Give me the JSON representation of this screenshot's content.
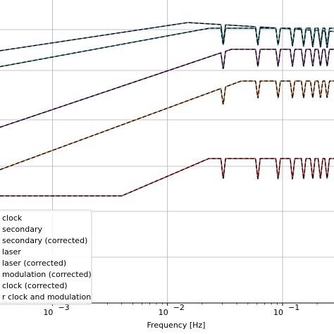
{
  "chart_data": {
    "type": "line",
    "title": "",
    "xlabel": "Frequency [Hz]",
    "ylabel": "",
    "xscale": "log",
    "xlim": [
      0.00035,
      0.28
    ],
    "grid": true,
    "x_ticks": [
      {
        "value": 0.001,
        "label": "10",
        "exp": "−3"
      },
      {
        "value": 0.01,
        "label": "10",
        "exp": "−2"
      },
      {
        "value": 0.1,
        "label": "10",
        "exp": "−1"
      }
    ],
    "legend": {
      "placement": "lower-left",
      "entries": [
        {
          "label": "clock",
          "color": "#4c72b0",
          "style": "solid"
        },
        {
          "label": "secondary",
          "color": "#1f8a8a",
          "style": "solid"
        },
        {
          "label": "secondary (corrected)",
          "color": "#8c8c8c",
          "style": "solid"
        },
        {
          "label": "laser",
          "color": "#7b2d8e",
          "style": "solid"
        },
        {
          "label": "laser (corrected)",
          "color": "#e377c2",
          "style": "solid"
        },
        {
          "label": "modulation (corrected)",
          "color": "#d2691e",
          "style": "solid"
        },
        {
          "label": "clock (corrected)",
          "color": "#d62728",
          "style": "solid"
        },
        {
          "label": "r clock and modulation",
          "color": "#000000",
          "style": "dashed"
        }
      ]
    },
    "series": [
      {
        "name": "clock",
        "color": "#4c72b0",
        "base": 0.3,
        "shape": "flat-rise",
        "dashed_overlay": true
      },
      {
        "name": "secondary",
        "color": "#1f8a8a",
        "base": 0.22,
        "shape": "rise",
        "dashed_overlay": true
      },
      {
        "name": "laser",
        "color": "#7b2d8e",
        "base": 0.42,
        "shape": "rise",
        "dashed_overlay": true
      },
      {
        "name": "modulation (corrected)",
        "color": "#d2691e",
        "base": 0.56,
        "shape": "rise",
        "dashed_overlay": true
      },
      {
        "name": "clock (corrected)",
        "color": "#d62728",
        "base": 0.88,
        "shape": "flat-then-rise",
        "dashed_overlay": true
      }
    ]
  }
}
